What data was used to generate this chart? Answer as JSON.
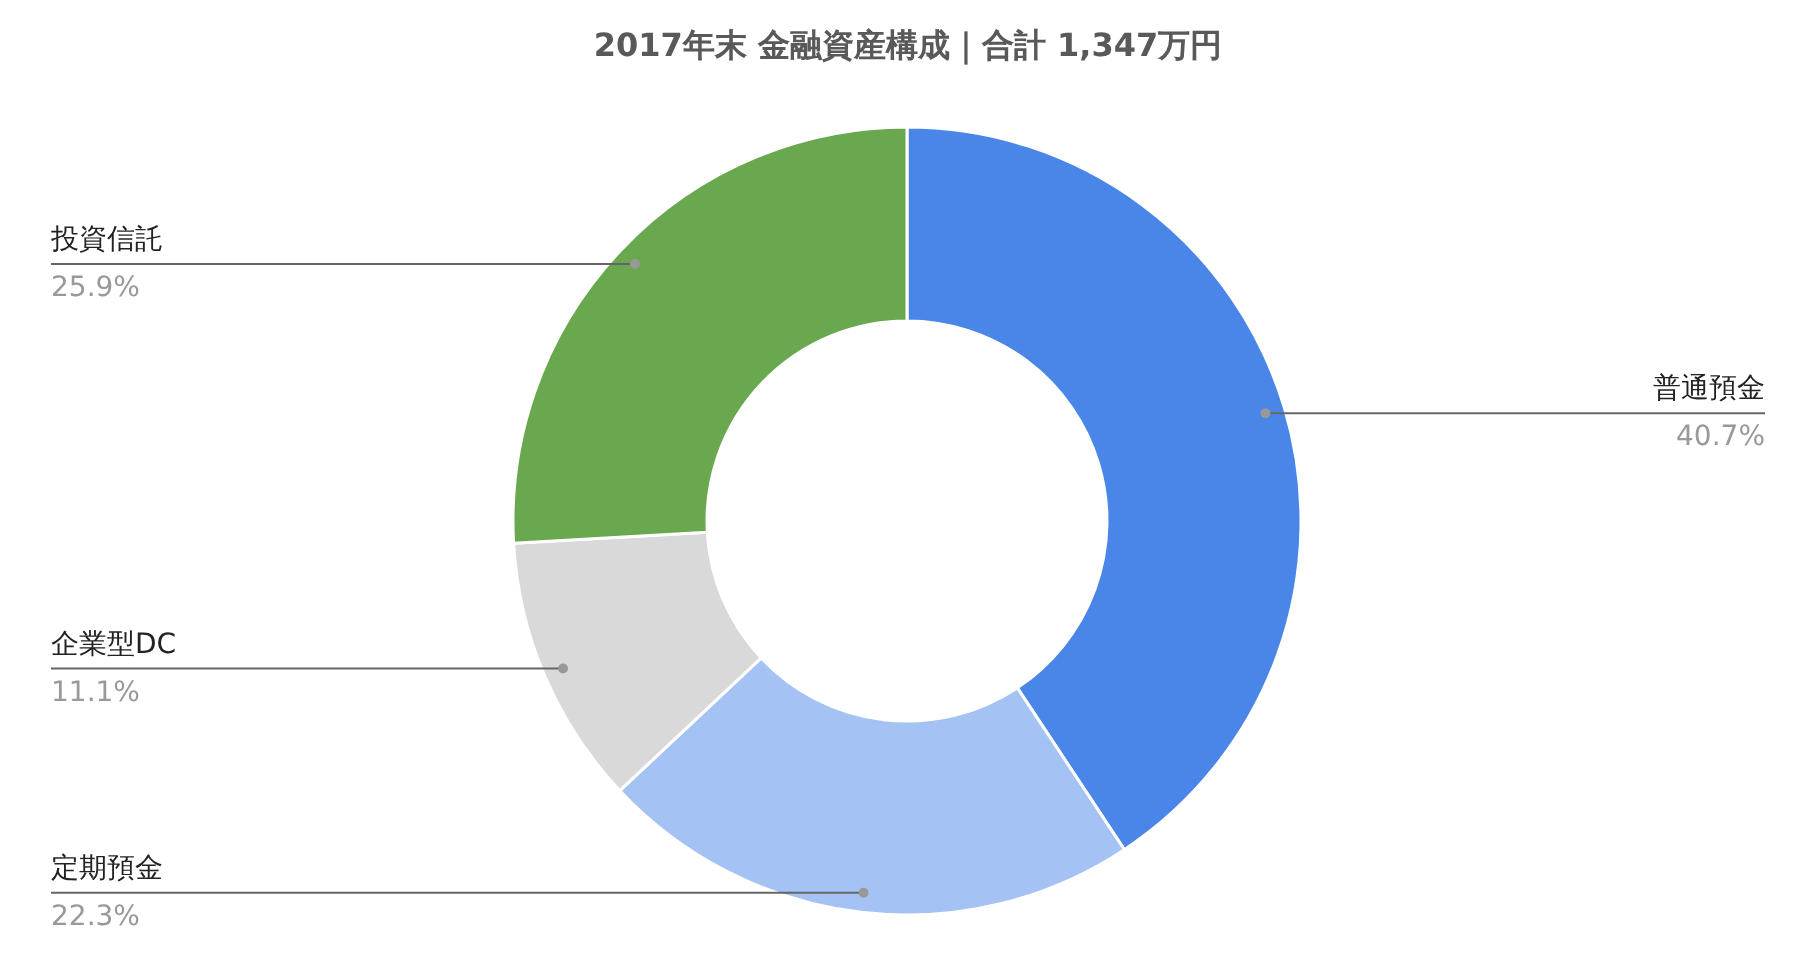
{
  "chart_data": {
    "type": "donut",
    "title": "2017年末 金融資産構成｜合計 1,347万円",
    "categories": [
      "普通預金",
      "定期預金",
      "企業型DC",
      "投資信託"
    ],
    "values": [
      40.7,
      22.3,
      11.1,
      25.9
    ],
    "colors": [
      "#4a86e8",
      "#a4c2f4",
      "#d9d9d9",
      "#6aa84f"
    ],
    "value_labels": [
      "40.7%",
      "22.3%",
      "11.1%",
      "25.9%"
    ]
  }
}
